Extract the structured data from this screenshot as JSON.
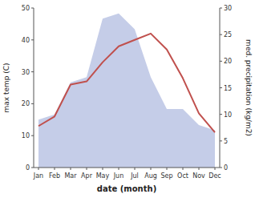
{
  "chart_data": {
    "type": "line",
    "x_label": "date (month)",
    "y_label": "max temp (C)",
    "y2_label": "med. precipitation (kg/m2)",
    "categories": [
      "Jan",
      "Feb",
      "Mar",
      "Apr",
      "May",
      "Jun",
      "Jul",
      "Aug",
      "Sep",
      "Oct",
      "Nov",
      "Dec"
    ],
    "series": [
      {
        "type": "area",
        "axis": "y2",
        "color": "#c5cde8",
        "values": [
          9,
          10,
          16,
          17,
          28,
          29,
          26,
          17,
          11,
          11,
          8,
          7
        ]
      },
      {
        "type": "line",
        "color": "#c0504d",
        "values": [
          13,
          16,
          26,
          27,
          33,
          38,
          40,
          42,
          37,
          28,
          17,
          11
        ]
      }
    ],
    "ylim": [
      0,
      50
    ],
    "yticks": [
      0,
      10,
      20,
      30,
      40,
      50
    ],
    "y2lim": [
      0,
      30
    ],
    "y2ticks": [
      0,
      5,
      10,
      15,
      20,
      25,
      30
    ],
    "grid": false
  }
}
